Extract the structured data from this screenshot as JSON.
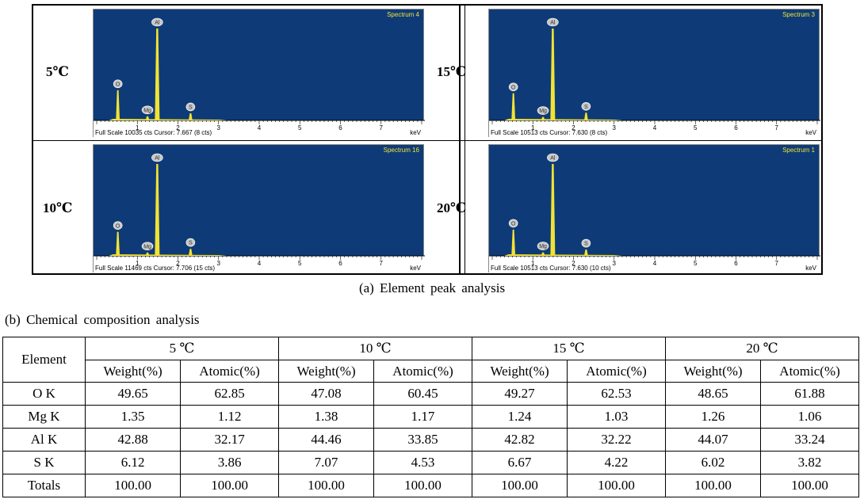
{
  "figure": {
    "panels": [
      {
        "temp_label": "5℃",
        "spectrum": "Spectrum 4",
        "footer": "Full Scale 10035 cts Cursor: 7.667  (8 cts)",
        "unit": "keV"
      },
      {
        "temp_label": "15℃",
        "spectrum": "Spectrum 3",
        "footer": "Full Scale 10513 cts Cursor: 7.630  (8 cts)",
        "unit": "keV"
      },
      {
        "temp_label": "10℃",
        "spectrum": "Spectrum 16",
        "footer": "Full Scale 11469 cts Cursor: 7.706  (15 cts)",
        "unit": "keV"
      },
      {
        "temp_label": "20℃",
        "spectrum": "Spectrum 1",
        "footer": "Full Scale 10513 cts Cursor: 7.630  (10 cts)",
        "unit": "keV"
      }
    ],
    "axis_ticks": [
      "1",
      "2",
      "3",
      "4",
      "5",
      "6",
      "7"
    ],
    "peak_labels": [
      "O",
      "Mg",
      "Al",
      "S"
    ],
    "caption": "(a)  Element  peak  analysis"
  },
  "chart_data": [
    {
      "type": "bar",
      "title": "Spectrum 4",
      "xlabel": "keV",
      "x": [
        0.52,
        1.25,
        1.49,
        2.31
      ],
      "labels": [
        "O",
        "Mg",
        "Al",
        "S"
      ],
      "values": [
        3300,
        450,
        10035,
        780
      ],
      "xlim": [
        0,
        8
      ],
      "ylim": [
        0,
        10035
      ]
    },
    {
      "type": "bar",
      "title": "Spectrum 3",
      "xlabel": "keV",
      "x": [
        0.52,
        1.25,
        1.49,
        2.31
      ],
      "labels": [
        "O",
        "Mg",
        "Al",
        "S"
      ],
      "values": [
        3100,
        400,
        10513,
        880
      ],
      "xlim": [
        0,
        8
      ],
      "ylim": [
        0,
        10513
      ]
    },
    {
      "type": "bar",
      "title": "Spectrum 16",
      "xlabel": "keV",
      "x": [
        0.52,
        1.25,
        1.49,
        2.31
      ],
      "labels": [
        "O",
        "Mg",
        "Al",
        "S"
      ],
      "values": [
        3000,
        420,
        11469,
        880
      ],
      "xlim": [
        0,
        8
      ],
      "ylim": [
        0,
        11469
      ]
    },
    {
      "type": "bar",
      "title": "Spectrum 1",
      "xlabel": "keV",
      "x": [
        0.52,
        1.25,
        1.49,
        2.31
      ],
      "labels": [
        "O",
        "Mg",
        "Al",
        "S"
      ],
      "values": [
        3000,
        400,
        10513,
        720
      ],
      "xlim": [
        0,
        8
      ],
      "ylim": [
        0,
        10513
      ]
    }
  ],
  "table": {
    "caption": "(b)  Chemical  composition  analysis",
    "element_header": "Element",
    "temps": [
      "5  ℃",
      "10  ℃",
      "15  ℃",
      "20  ℃"
    ],
    "sub_headers": [
      "Weight(%)",
      "Atomic(%)"
    ],
    "rows": [
      {
        "element": "O  K",
        "values": [
          "49.65",
          "62.85",
          "47.08",
          "60.45",
          "49.27",
          "62.53",
          "48.65",
          "61.88"
        ]
      },
      {
        "element": "Mg  K",
        "values": [
          "1.35",
          "1.12",
          "1.38",
          "1.17",
          "1.24",
          "1.03",
          "1.26",
          "1.06"
        ]
      },
      {
        "element": "Al  K",
        "values": [
          "42.88",
          "32.17",
          "44.46",
          "33.85",
          "42.82",
          "32.22",
          "44.07",
          "33.24"
        ]
      },
      {
        "element": "S  K",
        "values": [
          "6.12",
          "3.86",
          "7.07",
          "4.53",
          "6.67",
          "4.22",
          "6.02",
          "3.82"
        ]
      },
      {
        "element": "Totals",
        "values": [
          "100.00",
          "100.00",
          "100.00",
          "100.00",
          "100.00",
          "100.00",
          "100.00",
          "100.00"
        ]
      }
    ]
  }
}
